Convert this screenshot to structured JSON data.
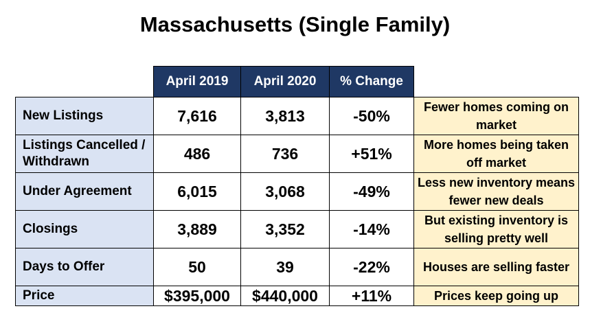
{
  "title": "Massachusetts (Single Family)",
  "columns": [
    "April 2019",
    "April 2020",
    "% Change"
  ],
  "rows": [
    {
      "label": "New Listings",
      "april_2019": "7,616",
      "april_2020": "3,813",
      "change": "-50%",
      "note": "Fewer homes coming on market"
    },
    {
      "label": "Listings Cancelled / Withdrawn",
      "april_2019": "486",
      "april_2020": "736",
      "change": "+51%",
      "note": "More homes being taken off market"
    },
    {
      "label": "Under Agreement",
      "april_2019": "6,015",
      "april_2020": "3,068",
      "change": "-49%",
      "note": "Less new inventory means fewer new deals"
    },
    {
      "label": "Closings",
      "april_2019": "3,889",
      "april_2020": "3,352",
      "change": "-14%",
      "note": "But existing inventory is selling pretty well"
    },
    {
      "label": "Days to Offer",
      "april_2019": "50",
      "april_2020": "39",
      "change": "-22%",
      "note": "Houses are selling faster"
    },
    {
      "label": "Price",
      "april_2019": "$395,000",
      "april_2020": "$440,000",
      "change": "+11%",
      "note": "Prices keep going up"
    }
  ],
  "colors": {
    "header_bg": "#1f3864",
    "label_bg": "#dae3f3",
    "note_bg": "#fff2cc"
  }
}
